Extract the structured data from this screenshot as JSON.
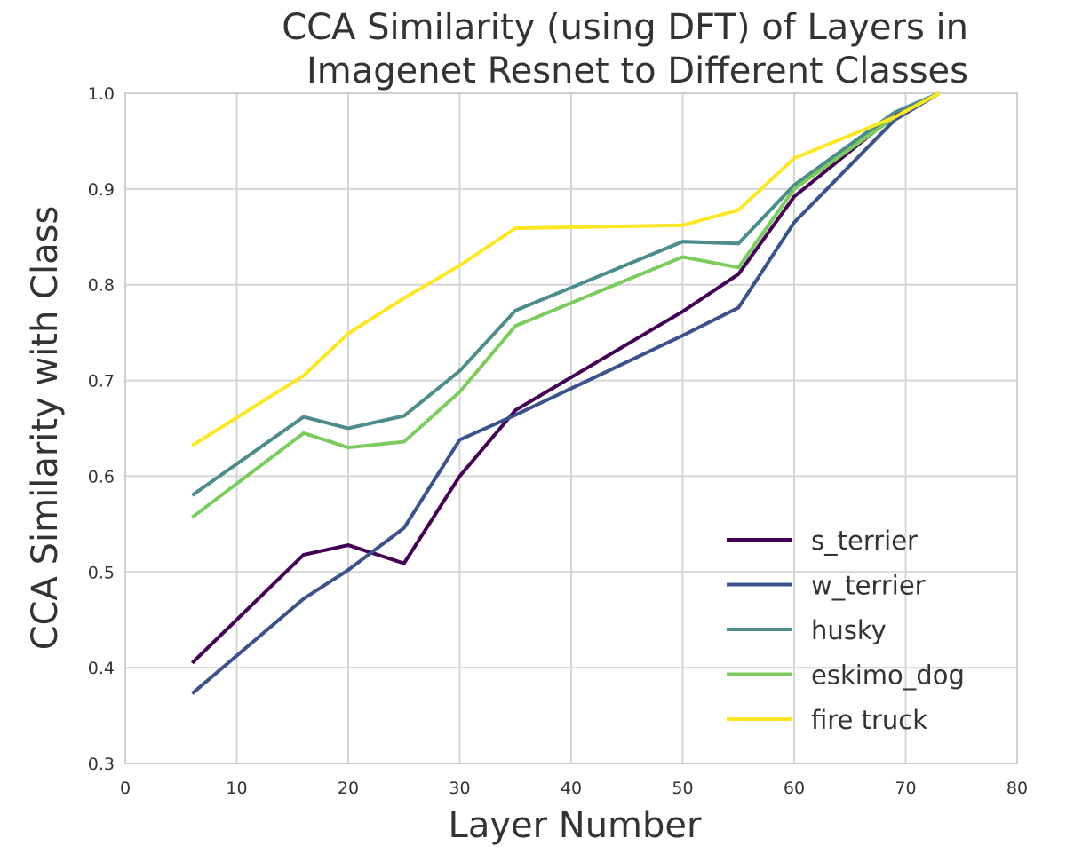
{
  "chart_data": {
    "type": "line",
    "title_lines": [
      "CCA Similarity (using DFT) of Layers in",
      "Imagenet Resnet to Different Classes"
    ],
    "xlabel": "Layer Number",
    "ylabel": "CCA Similarity with Class",
    "xlim": [
      0,
      80
    ],
    "ylim": [
      0.3,
      1.0
    ],
    "xticks": [
      0,
      10,
      20,
      30,
      40,
      50,
      60,
      70,
      80
    ],
    "yticks": [
      0.3,
      0.4,
      0.5,
      0.6,
      0.7,
      0.8,
      0.9,
      1.0
    ],
    "xtick_labels": [
      "0",
      "10",
      "20",
      "30",
      "40",
      "50",
      "60",
      "70",
      "80"
    ],
    "ytick_labels": [
      "0.3",
      "0.4",
      "0.5",
      "0.6",
      "0.7",
      "0.8",
      "0.9",
      "1.0"
    ],
    "grid": true,
    "legend_position": "lower-right",
    "x": [
      6,
      16,
      20,
      25,
      30,
      35,
      50,
      55,
      60,
      69,
      73
    ],
    "series": [
      {
        "name": "s_terrier",
        "color": "#440154",
        "values": [
          0.405,
          0.518,
          0.528,
          0.509,
          0.6,
          0.669,
          0.772,
          0.811,
          0.892,
          0.977,
          1.0
        ]
      },
      {
        "name": "w_terrier",
        "color": "#3b528b",
        "values": [
          0.373,
          0.472,
          0.502,
          0.546,
          0.638,
          0.664,
          0.747,
          0.776,
          0.865,
          0.972,
          1.0
        ]
      },
      {
        "name": "husky",
        "color": "#4d8c8a",
        "values": [
          0.58,
          0.662,
          0.65,
          0.663,
          0.71,
          0.773,
          0.845,
          0.843,
          0.904,
          0.98,
          1.0
        ]
      },
      {
        "name": "eskimo_dog",
        "color": "#7ccb5f",
        "values": [
          0.557,
          0.645,
          0.63,
          0.636,
          0.688,
          0.757,
          0.829,
          0.818,
          0.9,
          0.975,
          1.0
        ]
      },
      {
        "name": "fire truck",
        "color": "#fde725",
        "values": [
          0.632,
          0.705,
          0.749,
          0.786,
          0.82,
          0.859,
          0.862,
          0.878,
          0.932,
          0.975,
          1.0
        ]
      }
    ]
  }
}
